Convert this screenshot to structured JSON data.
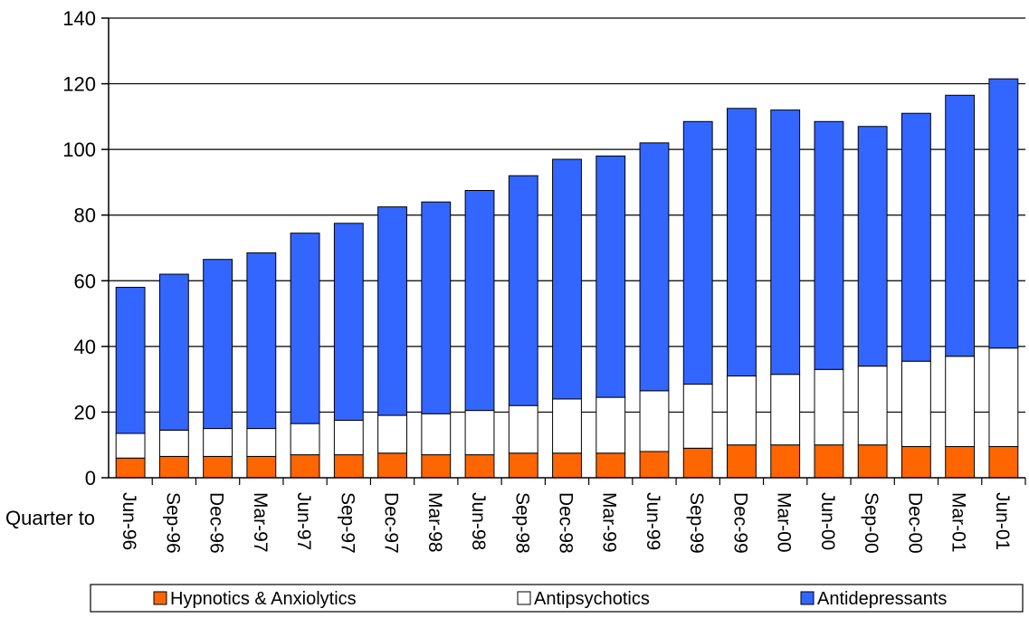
{
  "chart_data": {
    "type": "bar",
    "stacked": true,
    "title": "",
    "xlabel": "Quarter to",
    "ylabel": "",
    "ylim": [
      0,
      140
    ],
    "yticks": [
      0,
      20,
      40,
      60,
      80,
      100,
      120,
      140
    ],
    "grid": true,
    "legend_position": "bottom",
    "categories": [
      "Jun-96",
      "Sep-96",
      "Dec-96",
      "Mar-97",
      "Jun-97",
      "Sep-97",
      "Dec-97",
      "Mar-98",
      "Jun-98",
      "Sep-98",
      "Dec-98",
      "Mar-99",
      "Jun-99",
      "Sep-99",
      "Dec-99",
      "Mar-00",
      "Jun-00",
      "Sep-00",
      "Dec-00",
      "Mar-01",
      "Jun-01"
    ],
    "series": [
      {
        "name": "Hypnotics & Anxiolytics",
        "color": "#ff6600",
        "values": [
          6.0,
          6.5,
          6.5,
          6.5,
          7.0,
          7.0,
          7.5,
          7.0,
          7.0,
          7.5,
          7.5,
          7.5,
          8.0,
          9.0,
          10.0,
          10.0,
          10.0,
          10.0,
          9.5,
          9.5,
          9.5
        ]
      },
      {
        "name": "Antipsychotics",
        "color": "#ffffff",
        "values": [
          7.5,
          8.0,
          8.5,
          8.5,
          9.5,
          10.5,
          11.5,
          12.5,
          13.5,
          14.5,
          16.5,
          17.0,
          18.5,
          19.5,
          21.0,
          21.5,
          23.0,
          24.0,
          26.0,
          27.5,
          30.0
        ]
      },
      {
        "name": "Antidepressants",
        "color": "#3366ff",
        "values": [
          44.5,
          47.5,
          51.5,
          53.5,
          58.0,
          60.0,
          63.5,
          64.5,
          67.0,
          70.0,
          73.0,
          73.5,
          75.5,
          80.0,
          81.5,
          80.5,
          75.5,
          73.0,
          75.5,
          79.5,
          82.0
        ]
      }
    ]
  }
}
